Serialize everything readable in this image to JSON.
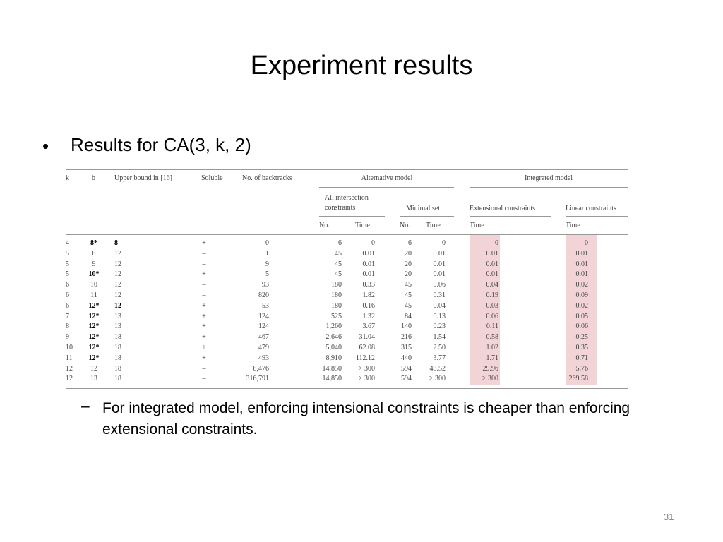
{
  "title": "Experiment results",
  "bullet": "Results for CA(3, k, 2)",
  "table": {
    "group_headers": [
      "Alternative model",
      "Integrated model"
    ],
    "sub_headers": [
      "All intersection constraints",
      "Minimal set",
      "Extensional constraints",
      "Linear constraints"
    ],
    "columns": [
      "k",
      "b",
      "Upper bound in [16]",
      "Soluble",
      "No. of backtracks",
      "No.",
      "Time",
      "No.",
      "Time",
      "Time",
      "Time"
    ],
    "rows": [
      [
        "4",
        "8*",
        "8",
        "+",
        "0",
        "6",
        "0",
        "6",
        "0",
        "0",
        "0"
      ],
      [
        "5",
        "8",
        "12",
        "–",
        "1",
        "45",
        "0.01",
        "20",
        "0.01",
        "0.01",
        "0.01"
      ],
      [
        "5",
        "9",
        "12",
        "–",
        "9",
        "45",
        "0.01",
        "20",
        "0.01",
        "0.01",
        "0.01"
      ],
      [
        "5",
        "10*",
        "12",
        "+",
        "5",
        "45",
        "0.01",
        "20",
        "0.01",
        "0.01",
        "0.01"
      ],
      [
        "6",
        "10",
        "12",
        "–",
        "93",
        "180",
        "0.33",
        "45",
        "0.06",
        "0.04",
        "0.02"
      ],
      [
        "6",
        "11",
        "12",
        "–",
        "820",
        "180",
        "1.82",
        "45",
        "0.31",
        "0.19",
        "0.09"
      ],
      [
        "6",
        "12*",
        "12",
        "+",
        "53",
        "180",
        "0.16",
        "45",
        "0.04",
        "0.03",
        "0.02"
      ],
      [
        "7",
        "12*",
        "13",
        "+",
        "124",
        "525",
        "1.32",
        "84",
        "0.13",
        "0.06",
        "0.05"
      ],
      [
        "8",
        "12*",
        "13",
        "+",
        "124",
        "1,260",
        "3.67",
        "140",
        "0.23",
        "0.11",
        "0.06"
      ],
      [
        "9",
        "12*",
        "18",
        "+",
        "467",
        "2,646",
        "31.04",
        "216",
        "1.54",
        "0.58",
        "0.25"
      ],
      [
        "10",
        "12*",
        "18",
        "+",
        "479",
        "5,040",
        "62.08",
        "315",
        "2.50",
        "1.02",
        "0.35"
      ],
      [
        "11",
        "12*",
        "18",
        "+",
        "493",
        "8,910",
        "112.12",
        "440",
        "3.77",
        "1.71",
        "0.71"
      ],
      [
        "12",
        "12",
        "18",
        "–",
        "8,476",
        "14,850",
        "> 300",
        "594",
        "48.52",
        "29.96",
        "5.76"
      ],
      [
        "12",
        "13",
        "18",
        "–",
        "316,791",
        "14,850",
        "> 300",
        "594",
        "> 300",
        "> 300",
        "269.58"
      ]
    ]
  },
  "sub_bullet": "For integrated model, enforcing intensional constraints is cheaper than enforcing extensional constraints.",
  "page_number": "31"
}
